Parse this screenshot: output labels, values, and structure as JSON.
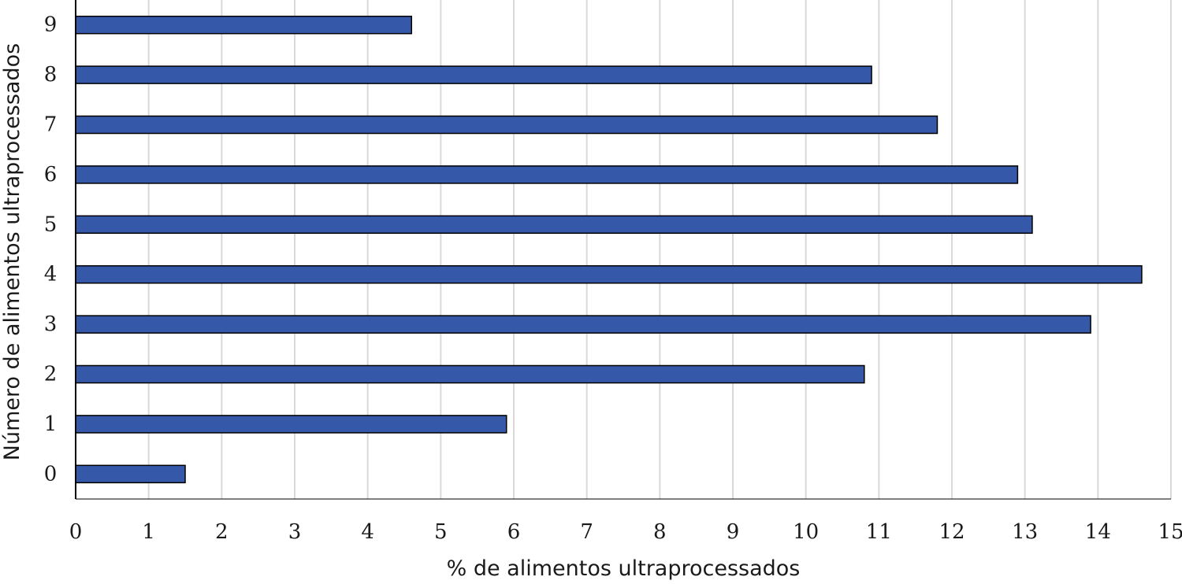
{
  "chart_data": {
    "type": "bar",
    "orientation": "horizontal",
    "categories": [
      "0",
      "1",
      "2",
      "3",
      "4",
      "5",
      "6",
      "7",
      "8",
      "9"
    ],
    "values": [
      1.5,
      5.9,
      10.8,
      13.9,
      14.6,
      13.1,
      12.9,
      11.8,
      10.9,
      4.6
    ],
    "xlabel": "% de alimentos ultraprocessados",
    "ylabel": "Número de alimentos ultraprocessados",
    "xlim": [
      0,
      15
    ],
    "xticks": [
      "0",
      "1",
      "2",
      "3",
      "4",
      "5",
      "6",
      "7",
      "8",
      "9",
      "10",
      "11",
      "12",
      "13",
      "14",
      "15"
    ],
    "grid": "vertical",
    "bar_color": "#3558a8",
    "bar_edge_color": "#000000",
    "grid_color": "#d9d9d9"
  }
}
